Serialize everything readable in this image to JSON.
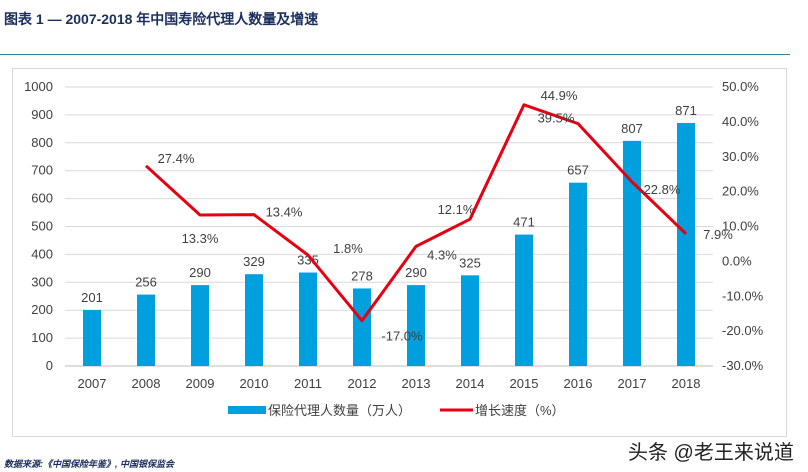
{
  "title": "图表 1 — 2007-2018 年中国寿险代理人数量及增速",
  "source": "数据来源:《中国保险年鉴》, 中国银保监会",
  "watermark": "头条 @老王来说道",
  "chart_data": {
    "type": "bar+line",
    "categories": [
      "2007",
      "2008",
      "2009",
      "2010",
      "2011",
      "2012",
      "2013",
      "2014",
      "2015",
      "2016",
      "2017",
      "2018"
    ],
    "series": [
      {
        "name": "保险代理人数量（万人）",
        "type": "bar",
        "axis": "left",
        "color": "#00a0de",
        "values": [
          201,
          256,
          290,
          329,
          335,
          278,
          290,
          325,
          471,
          657,
          807,
          871
        ]
      },
      {
        "name": "增长速度（%）",
        "type": "line",
        "axis": "right",
        "color": "#e60012",
        "values": [
          null,
          27.4,
          13.3,
          13.4,
          1.8,
          -17.0,
          4.3,
          12.1,
          44.9,
          39.5,
          22.8,
          7.9
        ],
        "labels": [
          "",
          "27.4%",
          "13.3%",
          "13.4%",
          "1.8%",
          "-17.0%",
          "4.3%",
          "12.1%",
          "44.9%",
          "39.5%",
          "22.8%",
          "7.9%"
        ]
      }
    ],
    "y_left": {
      "range": [
        0,
        1000
      ],
      "ticks": [
        "0",
        "100",
        "200",
        "300",
        "400",
        "500",
        "600",
        "700",
        "800",
        "900",
        "1000"
      ]
    },
    "y_right": {
      "range": [
        -30,
        50
      ],
      "ticks": [
        "-30.0%",
        "-20.0%",
        "-10.0%",
        "0.0%",
        "10.0%",
        "20.0%",
        "30.0%",
        "40.0%",
        "50.0%"
      ]
    },
    "grid": true,
    "legend": "bottom"
  }
}
